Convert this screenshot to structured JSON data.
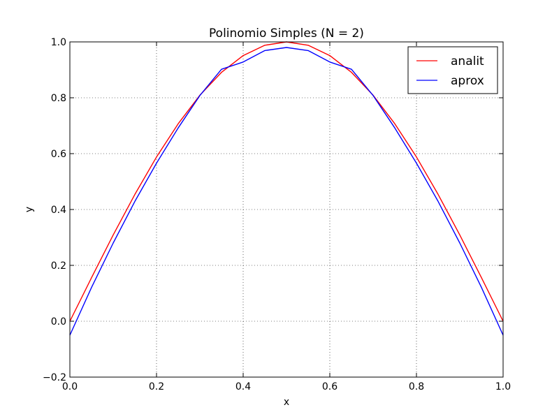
{
  "chart_data": {
    "type": "line",
    "title": "Polinomio Simples (N = 2)",
    "xlabel": "x",
    "ylabel": "y",
    "xlim": [
      0.0,
      1.0
    ],
    "ylim": [
      -0.2,
      1.0
    ],
    "xticks": [
      0.0,
      0.2,
      0.4,
      0.6,
      0.8,
      1.0
    ],
    "yticks": [
      -0.2,
      0.0,
      0.2,
      0.4,
      0.6,
      0.8,
      1.0
    ],
    "xtick_labels": [
      "0.0",
      "0.2",
      "0.4",
      "0.6",
      "0.8",
      "1.0"
    ],
    "ytick_labels": [
      "−0.2",
      "0.0",
      "0.2",
      "0.4",
      "0.6",
      "0.8",
      "1.0"
    ],
    "grid": true,
    "legend_position": "top-right",
    "x": [
      0.0,
      0.05,
      0.1,
      0.15,
      0.2,
      0.25,
      0.3,
      0.35,
      0.4,
      0.45,
      0.5,
      0.55,
      0.6,
      0.65,
      0.7,
      0.75,
      0.8,
      0.85,
      0.9,
      0.95,
      1.0
    ],
    "series": [
      {
        "name": "analit",
        "color": "#ff0000",
        "values": [
          0.0,
          0.156,
          0.309,
          0.454,
          0.588,
          0.707,
          0.809,
          0.891,
          0.951,
          0.988,
          1.0,
          0.988,
          0.951,
          0.891,
          0.809,
          0.707,
          0.588,
          0.454,
          0.309,
          0.156,
          0.0
        ]
      },
      {
        "name": "aprox",
        "color": "#0000ff",
        "values": [
          -0.05,
          0.121,
          0.28,
          0.429,
          0.566,
          0.692,
          0.808,
          0.902,
          0.928,
          0.969,
          0.98,
          0.969,
          0.928,
          0.902,
          0.808,
          0.692,
          0.566,
          0.429,
          0.28,
          0.121,
          -0.05
        ]
      }
    ]
  }
}
